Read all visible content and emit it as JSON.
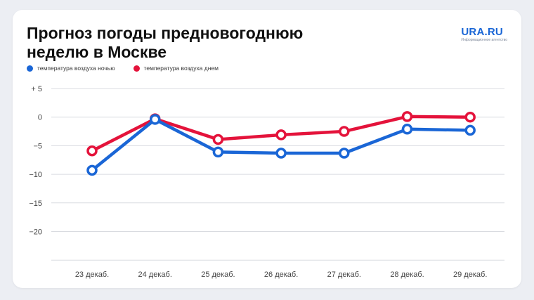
{
  "title_lines": [
    "Прогноз погоды предновогоднюю",
    "неделю в Москве"
  ],
  "brand": {
    "name": "URA.RU",
    "tagline": "Информационное агентство"
  },
  "colors": {
    "night": "#1a66d6",
    "day": "#e4133b",
    "grid": "#d9dbe0",
    "tick_text": "#444444"
  },
  "chart_data": {
    "type": "line",
    "categories": [
      "23 декаб.",
      "24 декаб.",
      "25 декаб.",
      "26 декаб.",
      "27 декаб.",
      "28 декаб.",
      "29 декаб."
    ],
    "series": [
      {
        "name": "температура воздуха ночью",
        "color": "#1a66d6",
        "values": [
          -9.3,
          -0.4,
          -6.1,
          -6.3,
          -6.3,
          -2.1,
          -2.3
        ]
      },
      {
        "name": "температура воздуха днем",
        "color": "#e4133b",
        "values": [
          -5.9,
          -0.3,
          -3.9,
          -3.1,
          -2.5,
          0.1,
          0.0
        ]
      }
    ],
    "yticks": [
      5,
      0,
      -5,
      -10,
      -15,
      -20
    ],
    "ytick_labels": [
      "+ 5",
      "0",
      "−5",
      "−10",
      "−15",
      "−20"
    ],
    "ylim": [
      -25,
      5
    ],
    "grid": true,
    "legend": "top-left",
    "xlabel": "",
    "ylabel": ""
  }
}
